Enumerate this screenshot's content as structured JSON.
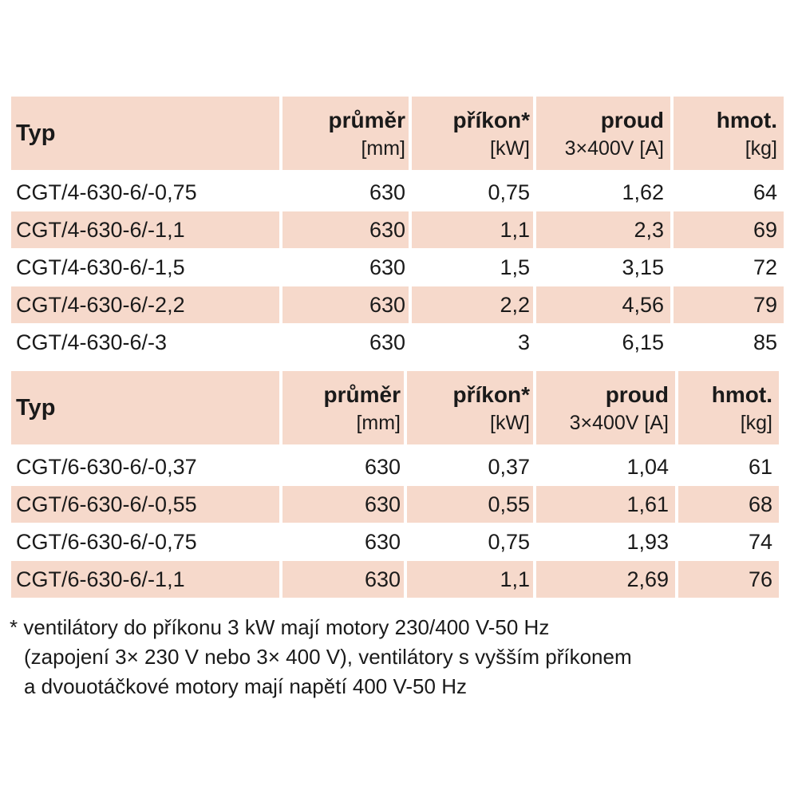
{
  "table1": {
    "header": {
      "typ": "Typ",
      "prumer": "průměr",
      "prumer_unit": "[mm]",
      "prikon": "příkon*",
      "prikon_unit": "[kW]",
      "proud": "proud",
      "proud_unit": "3×400V [A]",
      "hmot": "hmot.",
      "hmot_unit": "[kg]"
    },
    "rows": [
      {
        "typ": "CGT/4-630-6/-0,75",
        "prumer": "630",
        "prikon": "0,75",
        "proud": "1,62",
        "hmot": "64"
      },
      {
        "typ": "CGT/4-630-6/-1,1",
        "prumer": "630",
        "prikon": "1,1",
        "proud": "2,3",
        "hmot": "69"
      },
      {
        "typ": "CGT/4-630-6/-1,5",
        "prumer": "630",
        "prikon": "1,5",
        "proud": "3,15",
        "hmot": "72"
      },
      {
        "typ": "CGT/4-630-6/-2,2",
        "prumer": "630",
        "prikon": "2,2",
        "proud": "4,56",
        "hmot": "79"
      },
      {
        "typ": "CGT/4-630-6/-3",
        "prumer": "630",
        "prikon": "3",
        "proud": "6,15",
        "hmot": "85"
      }
    ]
  },
  "table2": {
    "header": {
      "typ": "Typ",
      "prumer": "průměr",
      "prumer_unit": "[mm]",
      "prikon": "příkon*",
      "prikon_unit": "[kW]",
      "proud": "proud",
      "proud_unit": "3×400V [A]",
      "hmot": "hmot.",
      "hmot_unit": "[kg]"
    },
    "rows": [
      {
        "typ": "CGT/6-630-6/-0,37",
        "prumer": "630",
        "prikon": "0,37",
        "proud": "1,04",
        "hmot": "61"
      },
      {
        "typ": "CGT/6-630-6/-0,55",
        "prumer": "630",
        "prikon": "0,55",
        "proud": "1,61",
        "hmot": "68"
      },
      {
        "typ": "CGT/6-630-6/-0,75",
        "prumer": "630",
        "prikon": "0,75",
        "proud": "1,93",
        "hmot": "74"
      },
      {
        "typ": "CGT/6-630-6/-1,1",
        "prumer": "630",
        "prikon": "1,1",
        "proud": "2,69",
        "hmot": "76"
      }
    ]
  },
  "footnote": {
    "line1": "* ventilátory do příkonu 3 kW mají motory 230/400 V-50 Hz",
    "line2": "(zapojení 3× 230 V nebo 3× 400 V), ventilátory s vyšším příkonem",
    "line3": "a dvouotáčkové motory mají napětí 400 V-50 Hz"
  },
  "colors": {
    "row_shade": "#f6d9cb",
    "text": "#1a1a1a",
    "background": "#ffffff"
  }
}
